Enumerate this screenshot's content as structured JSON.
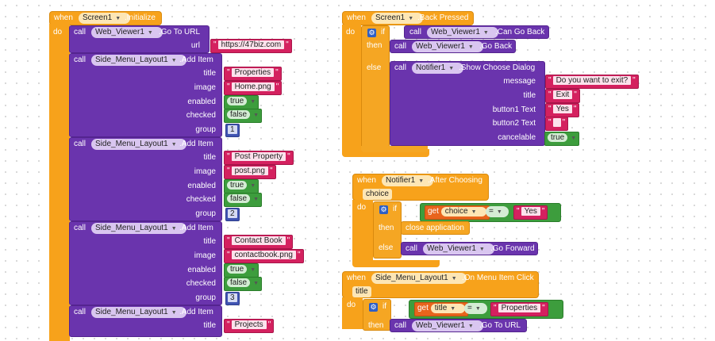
{
  "kw": {
    "when": "when",
    "do": "do",
    "call": "call",
    "if": "if",
    "then": "then",
    "else": "else",
    "get": "get"
  },
  "init": {
    "component": "Screen1",
    "event": ".Initialize",
    "goto": {
      "component": "Web_Viewer1",
      "method": ".Go To URL",
      "param": "url",
      "value": "https://47biz.com"
    },
    "add_items": [
      {
        "component": "Side_Menu_Layout1",
        "method": ".Add Item",
        "title": "Properties",
        "image": "Home.png",
        "enabled": "true",
        "checked": "false",
        "group": "1"
      },
      {
        "component": "Side_Menu_Layout1",
        "method": ".Add Item",
        "title": "Post Property",
        "image": "post.png",
        "enabled": "true",
        "checked": "false",
        "group": "2"
      },
      {
        "component": "Side_Menu_Layout1",
        "method": ".Add Item",
        "title": "Contact Book",
        "image": "contactbook.png",
        "enabled": "true",
        "checked": "false",
        "group": "3"
      },
      {
        "component": "Side_Menu_Layout1",
        "method": ".Add Item",
        "title": "Projects"
      }
    ],
    "param_labels": {
      "title": "title",
      "image": "image",
      "enabled": "enabled",
      "checked": "checked",
      "group": "group"
    }
  },
  "back": {
    "component": "Screen1",
    "event": ".Back Pressed",
    "can_go_back": {
      "component": "Web_Viewer1",
      "method": ".Can Go Back"
    },
    "go_back": {
      "component": "Web_Viewer1",
      "method": ".Go Back"
    },
    "dialog": {
      "component": "Notifier1",
      "method": ".Show Choose Dialog",
      "params": [
        {
          "name": "message",
          "value": "Do you want to exit?"
        },
        {
          "name": "title",
          "value": "Exit"
        },
        {
          "name": "button1 Text",
          "value": "Yes"
        },
        {
          "name": "button2 Text",
          "value": ""
        }
      ],
      "cancelable_label": "cancelable",
      "cancelable": "true"
    }
  },
  "after": {
    "component": "Notifier1",
    "event": ".After Choosing",
    "param": "choice",
    "get_var": "choice",
    "op": "=",
    "value": "Yes",
    "then_action": "close application",
    "go_forward": {
      "component": "Web_Viewer1",
      "method": ".Go Forward"
    }
  },
  "menu": {
    "component": "Side_Menu_Layout1",
    "event": ".On Menu Item Click",
    "param": "title",
    "get_var": "title",
    "op": "=",
    "value": "Properties",
    "goto": {
      "component": "Web_Viewer1",
      "method": ".Go To URL"
    }
  },
  "colors": {
    "event": "#f7a21b",
    "procedure": "#6a34ad",
    "text": "#d4215f",
    "logic": "#3d9d3d",
    "math": "#4054b2",
    "variable": "#e8641c",
    "control": "#f5a623"
  }
}
